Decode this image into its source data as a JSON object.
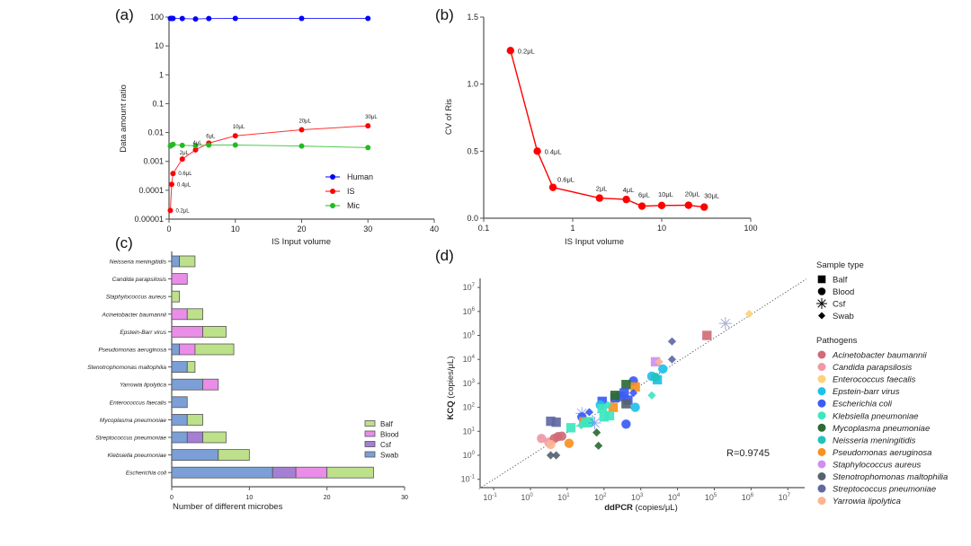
{
  "chart_data": [
    {
      "panel": "(a)",
      "type": "line",
      "xlabel": "IS Input volume",
      "ylabel": "Data amount ratio",
      "xlim": [
        0,
        40
      ],
      "ylim": [
        1e-05,
        100
      ],
      "yscale": "log",
      "xticks": [
        "0",
        "10",
        "20",
        "30",
        "40"
      ],
      "yticks": [
        "0.00001",
        "0.0001",
        "0.001",
        "0.01",
        "0.1",
        "1",
        "10",
        "100"
      ],
      "x": [
        0.2,
        0.4,
        0.6,
        2,
        4,
        6,
        10,
        20,
        30
      ],
      "point_labels": [
        "0.2μL",
        "0.4μL",
        "0.6μL",
        "2μL",
        "4μL",
        "6μL",
        "10μL",
        "20μL",
        "30μL"
      ],
      "series": [
        {
          "name": "Human",
          "color": "#0000ff",
          "values": [
            90,
            90,
            90,
            89,
            86,
            89,
            90,
            90,
            90
          ]
        },
        {
          "name": "IS",
          "color": "#ff0000",
          "values": [
            2e-05,
            0.00016,
            0.00038,
            0.0012,
            0.0025,
            0.0043,
            0.0077,
            0.0125,
            0.017
          ]
        },
        {
          "name": "Mic",
          "color": "#22bb22",
          "values": [
            0.0034,
            0.0037,
            0.0039,
            0.0036,
            0.0035,
            0.0037,
            0.0037,
            0.0034,
            0.003
          ]
        }
      ],
      "legend": "bottom-right"
    },
    {
      "panel": "(b)",
      "type": "line",
      "xlabel": "IS Input volume",
      "ylabel": "CV of Ris",
      "xscale": "log",
      "xlim": [
        0.1,
        100
      ],
      "ylim": [
        0,
        1.5
      ],
      "xticks": [
        "0.1",
        "1",
        "10",
        "100"
      ],
      "yticks": [
        "0.0",
        "0.5",
        "1.0",
        "1.5"
      ],
      "x": [
        0.2,
        0.4,
        0.6,
        2,
        4,
        6,
        10,
        20,
        30
      ],
      "point_labels": [
        "0.2μL",
        "0.4μL",
        "0.6μL",
        "2μL",
        "4μL",
        "6μL",
        "10μL",
        "20μL",
        "30μL"
      ],
      "series": [
        {
          "name": "CV",
          "color": "#ff0000",
          "values": [
            1.25,
            0.5,
            0.23,
            0.15,
            0.14,
            0.09,
            0.095,
            0.097,
            0.083
          ]
        }
      ]
    },
    {
      "panel": "(c)",
      "type": "bar",
      "orientation": "horizontal",
      "stacked": true,
      "xlabel": "Number of different microbes",
      "xlim": [
        0,
        30
      ],
      "xticks": [
        "0",
        "10",
        "20",
        "30"
      ],
      "categories": [
        "Neisseria meningitidis",
        "Candida parapsilosis",
        "Staphylococcus aureus",
        "Acinetobacter baumannii",
        "Epstein-Barr virus",
        "Pseudomonas aeruginosa",
        "Stenotrophomonas maltophilia",
        "Yarrowia lipolytica",
        "Enterococcus faecalis",
        "Mycoplasma pneumoniae",
        "Streptococcus pneumoniae",
        "Klebsiella pneumoniae",
        "Escherichia coli"
      ],
      "series": [
        {
          "name": "Swab",
          "color": "#7b9fd6",
          "values": [
            1,
            0,
            0,
            0,
            0,
            1,
            2,
            4,
            2,
            2,
            2,
            6,
            13
          ]
        },
        {
          "name": "Csf",
          "color": "#a57fd4",
          "values": [
            0,
            0,
            0,
            0,
            0,
            0,
            0,
            0,
            0,
            0,
            2,
            0,
            3
          ]
        },
        {
          "name": "Blood",
          "color": "#ea8de8",
          "values": [
            0,
            2,
            0,
            2,
            4,
            2,
            0,
            2,
            0,
            0,
            0,
            0,
            4
          ]
        },
        {
          "name": "Balf",
          "color": "#bde08a",
          "values": [
            2,
            0,
            1,
            2,
            3,
            5,
            1,
            0,
            0,
            2,
            3,
            4,
            6
          ]
        }
      ],
      "legend_order": [
        "Balf",
        "Blood",
        "Csf",
        "Swab"
      ],
      "legend": "right"
    },
    {
      "panel": "(d)",
      "type": "scatter",
      "xlabel_bold": "ddPCR",
      "xlabel_rest": " (copies/μL)",
      "ylabel_bold": "KCQ",
      "ylabel_rest": " (copies/μL)",
      "xscale": "log",
      "yscale": "log",
      "xticks_exp": [
        "-1",
        "0",
        "1",
        "2",
        "3",
        "4",
        "5",
        "6",
        "7"
      ],
      "yticks_exp": [
        "-1",
        "0",
        "1",
        "2",
        "3",
        "4",
        "5",
        "6",
        "7"
      ],
      "annotation": "R=0.9745",
      "reference_line": "y = x",
      "sample_type_title": "Sample type",
      "sample_types": [
        {
          "name": "Balf",
          "shape": "square"
        },
        {
          "name": "Blood",
          "shape": "circle"
        },
        {
          "name": "Csf",
          "shape": "asterisk"
        },
        {
          "name": "Swab",
          "shape": "diamond"
        }
      ],
      "pathogens_title": "Pathogens",
      "pathogens": [
        {
          "name": "Acinetobacter baumannii",
          "color": "#d16b78"
        },
        {
          "name": "Candida parapsilosis",
          "color": "#ef98a6"
        },
        {
          "name": "Enterococcus faecalis",
          "color": "#fcd27d"
        },
        {
          "name": "Epstein-barr virus",
          "color": "#1fc0ea"
        },
        {
          "name": "Escherichia coli",
          "color": "#3b5bf5"
        },
        {
          "name": "Klebsiella pneumoniae",
          "color": "#3de6c0"
        },
        {
          "name": "Mycoplasma pneumoniae",
          "color": "#2c6b35"
        },
        {
          "name": "Neisseria meningitidis",
          "color": "#1fc4bd"
        },
        {
          "name": "Pseudomonas aeruginosa",
          "color": "#f99020"
        },
        {
          "name": "Staphylococcus aureus",
          "color": "#d08ef0"
        },
        {
          "name": "Stenotrophomonas maltophilia",
          "color": "#56636f"
        },
        {
          "name": "Streptococcus pneumoniae",
          "color": "#5f6aa3"
        },
        {
          "name": "Yarrowia lipolytica",
          "color": "#fdb492"
        }
      ],
      "points": [
        {
          "x": 4.8,
          "y": 5.0,
          "pathogen": "Acinetobacter baumannii",
          "sample": "Balf"
        },
        {
          "x": 0.3,
          "y": 0.7,
          "pathogen": "Candida parapsilosis",
          "sample": "Blood"
        },
        {
          "x": 0.5,
          "y": 0.55,
          "pathogen": "Candida parapsilosis",
          "sample": "Blood"
        },
        {
          "x": 0.65,
          "y": 0.7,
          "pathogen": "Acinetobacter baumannii",
          "sample": "Blood"
        },
        {
          "x": 0.75,
          "y": 0.78,
          "pathogen": "Acinetobacter baumannii",
          "sample": "Blood"
        },
        {
          "x": 0.85,
          "y": 0.8,
          "pathogen": "Acinetobacter baumannii",
          "sample": "Blood"
        },
        {
          "x": 0.55,
          "y": 0.45,
          "pathogen": "Yarrowia lipolytica",
          "sample": "Blood"
        },
        {
          "x": 1.05,
          "y": 0.5,
          "pathogen": "Pseudomonas aeruginosa",
          "sample": "Blood"
        },
        {
          "x": 5.95,
          "y": 5.9,
          "pathogen": "Enterococcus faecalis",
          "sample": "Swab"
        },
        {
          "x": 5.3,
          "y": 5.5,
          "pathogen": "Streptococcus pneumoniae",
          "sample": "Csf"
        },
        {
          "x": 3.85,
          "y": 4.75,
          "pathogen": "Streptococcus pneumoniae",
          "sample": "Swab"
        },
        {
          "x": 3.85,
          "y": 4.0,
          "pathogen": "Streptococcus pneumoniae",
          "sample": "Swab"
        },
        {
          "x": 3.4,
          "y": 3.9,
          "pathogen": "Staphylococcus aureus",
          "sample": "Balf"
        },
        {
          "x": 3.5,
          "y": 3.9,
          "pathogen": "Yarrowia lipolytica",
          "sample": "Swab"
        },
        {
          "x": 3.6,
          "y": 3.6,
          "pathogen": "Epstein-barr virus",
          "sample": "Blood"
        },
        {
          "x": 3.3,
          "y": 3.3,
          "pathogen": "Epstein-barr virus",
          "sample": "Blood"
        },
        {
          "x": 3.45,
          "y": 3.15,
          "pathogen": "Epstein-barr virus",
          "sample": "Balf"
        },
        {
          "x": 3.4,
          "y": 3.25,
          "pathogen": "Neisseria meningitidis",
          "sample": "Blood"
        },
        {
          "x": 3.3,
          "y": 2.5,
          "pathogen": "Klebsiella pneumoniae",
          "sample": "Swab"
        },
        {
          "x": 2.8,
          "y": 3.1,
          "pathogen": "Escherichia coli",
          "sample": "Blood"
        },
        {
          "x": 2.85,
          "y": 2.85,
          "pathogen": "Pseudomonas aeruginosa",
          "sample": "Balf"
        },
        {
          "x": 2.8,
          "y": 2.6,
          "pathogen": "Escherichia coli",
          "sample": "Swab"
        },
        {
          "x": 2.6,
          "y": 2.95,
          "pathogen": "Mycoplasma pneumoniae",
          "sample": "Balf"
        },
        {
          "x": 2.55,
          "y": 2.6,
          "pathogen": "Escherichia coli",
          "sample": "Balf"
        },
        {
          "x": 2.45,
          "y": 2.45,
          "pathogen": "Escherichia coli",
          "sample": "Balf"
        },
        {
          "x": 2.65,
          "y": 2.3,
          "pathogen": "Escherichia coli",
          "sample": "Balf"
        },
        {
          "x": 2.3,
          "y": 2.4,
          "pathogen": "Escherichia coli",
          "sample": "Balf"
        },
        {
          "x": 2.6,
          "y": 2.15,
          "pathogen": "Stenotrophomonas maltophilia",
          "sample": "Balf"
        },
        {
          "x": 2.85,
          "y": 2.0,
          "pathogen": "Epstein-barr virus",
          "sample": "Blood"
        },
        {
          "x": 2.3,
          "y": 2.5,
          "pathogen": "Mycoplasma pneumoniae",
          "sample": "Balf"
        },
        {
          "x": 2.25,
          "y": 2.0,
          "pathogen": "Pseudomonas aeruginosa",
          "sample": "Balf"
        },
        {
          "x": 1.95,
          "y": 2.25,
          "pathogen": "Escherichia coli",
          "sample": "Balf"
        },
        {
          "x": 1.9,
          "y": 2.1,
          "pathogen": "Epstein-barr virus",
          "sample": "Blood"
        },
        {
          "x": 1.95,
          "y": 1.95,
          "pathogen": "Klebsiella pneumoniae",
          "sample": "Balf"
        },
        {
          "x": 2.1,
          "y": 2.1,
          "pathogen": "Klebsiella pneumoniae",
          "sample": "Swab"
        },
        {
          "x": 2.6,
          "y": 1.3,
          "pathogen": "Escherichia coli",
          "sample": "Blood"
        },
        {
          "x": 2.0,
          "y": 1.6,
          "pathogen": "Klebsiella pneumoniae",
          "sample": "Balf"
        },
        {
          "x": 2.15,
          "y": 1.65,
          "pathogen": "Klebsiella pneumoniae",
          "sample": "Balf"
        },
        {
          "x": 1.6,
          "y": 1.8,
          "pathogen": "Escherichia coli",
          "sample": "Swab"
        },
        {
          "x": 1.4,
          "y": 1.75,
          "pathogen": "Escherichia coli",
          "sample": "Csf"
        },
        {
          "x": 1.4,
          "y": 1.6,
          "pathogen": "Escherichia coli",
          "sample": "Blood"
        },
        {
          "x": 1.45,
          "y": 1.4,
          "pathogen": "Pseudomonas aeruginosa",
          "sample": "Balf"
        },
        {
          "x": 1.5,
          "y": 1.35,
          "pathogen": "Klebsiella pneumoniae",
          "sample": "Balf"
        },
        {
          "x": 1.6,
          "y": 1.4,
          "pathogen": "Klebsiella pneumoniae",
          "sample": "Balf"
        },
        {
          "x": 1.75,
          "y": 1.35,
          "pathogen": "Escherichia coli",
          "sample": "Csf"
        },
        {
          "x": 1.38,
          "y": 1.25,
          "pathogen": "Klebsiella pneumoniae",
          "sample": "Swab"
        },
        {
          "x": 1.8,
          "y": 0.95,
          "pathogen": "Mycoplasma pneumoniae",
          "sample": "Swab"
        },
        {
          "x": 1.85,
          "y": 0.4,
          "pathogen": "Mycoplasma pneumoniae",
          "sample": "Swab"
        },
        {
          "x": 1.1,
          "y": 1.15,
          "pathogen": "Klebsiella pneumoniae",
          "sample": "Balf"
        },
        {
          "x": 0.55,
          "y": 1.42,
          "pathogen": "Streptococcus pneumoniae",
          "sample": "Balf"
        },
        {
          "x": 0.7,
          "y": 1.38,
          "pathogen": "Streptococcus pneumoniae",
          "sample": "Balf"
        },
        {
          "x": 0.55,
          "y": 0.0,
          "pathogen": "Stenotrophomonas maltophilia",
          "sample": "Swab"
        },
        {
          "x": 0.7,
          "y": 0.0,
          "pathogen": "Stenotrophomonas maltophilia",
          "sample": "Swab"
        }
      ]
    }
  ]
}
